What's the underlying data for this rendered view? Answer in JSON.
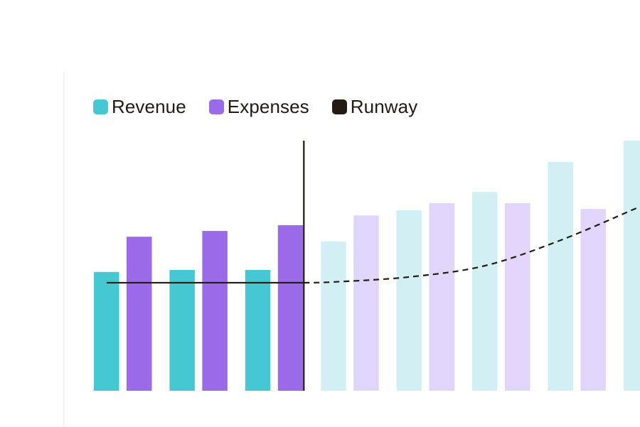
{
  "colors": {
    "revenue": "#46c8d3",
    "expenses": "#9b6ae8",
    "revenue_projected": "#d2f0f3",
    "expenses_projected": "#e1d5fb",
    "runway": "#231a12"
  },
  "chart_data": {
    "type": "bar",
    "categories": [
      "",
      "",
      "",
      "",
      "",
      "",
      "",
      ""
    ],
    "ylim": [
      0,
      100
    ],
    "grid": false,
    "legend_position": "top-left",
    "actual_count": 3,
    "series": [
      {
        "name": "Revenue",
        "type": "bar",
        "values": [
          47.5,
          48.3,
          48.3,
          59.7,
          72.2,
          79.5,
          91.5,
          100
        ]
      },
      {
        "name": "Expenses",
        "type": "bar",
        "values": [
          61.6,
          63.9,
          66.2,
          70.1,
          75.0,
          75.0,
          72.7,
          0
        ]
      },
      {
        "name": "Runway",
        "type": "line",
        "values": [
          43.2,
          43.2,
          43.2,
          43.5,
          45.5,
          50.0,
          60.2,
          73.0
        ]
      }
    ],
    "divider_after_index": 2
  }
}
